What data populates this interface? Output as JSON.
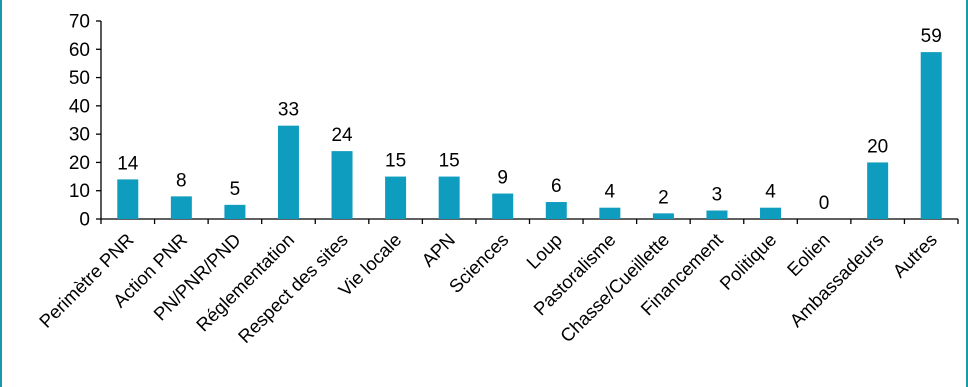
{
  "chart_data": {
    "type": "bar",
    "categories": [
      "Perimètre PNR",
      "Action PNR",
      "PN/PNR/PND",
      "Réglementation",
      "Respect des sites",
      "Vie locale",
      "APN",
      "Sciences",
      "Loup",
      "Pastoralisme",
      "Chasse/Cueillette",
      "Financement",
      "Politique",
      "Eolien",
      "Ambassadeurs",
      "Autres"
    ],
    "values": [
      14,
      8,
      5,
      33,
      24,
      15,
      15,
      9,
      6,
      4,
      2,
      3,
      4,
      0,
      20,
      59
    ],
    "ylim": [
      0,
      70
    ],
    "yticks": [
      0,
      10,
      20,
      30,
      40,
      50,
      60,
      70
    ],
    "grid": false,
    "legend": "none",
    "bar_color": "#0f9dbf",
    "axis_color": "#000000",
    "frame_color": "#1a9aa8"
  }
}
